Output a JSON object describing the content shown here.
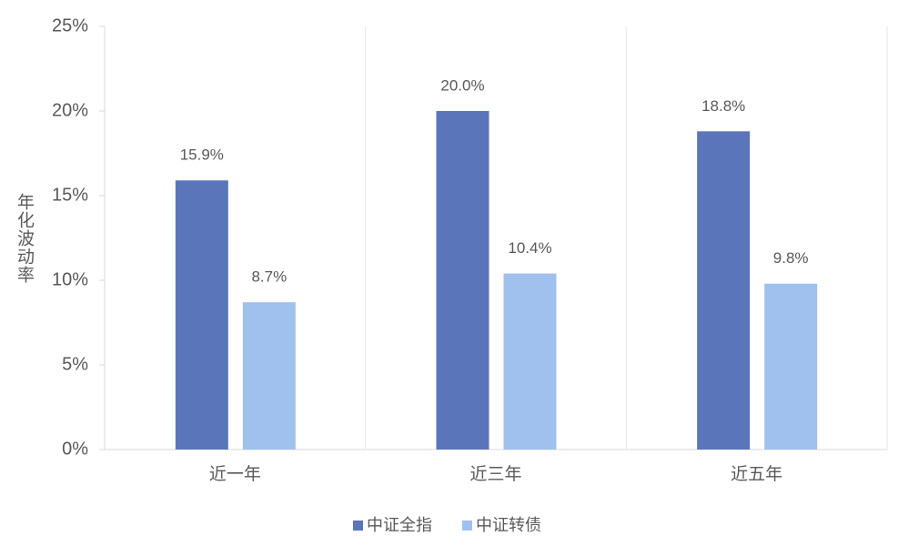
{
  "chart_data": {
    "type": "bar",
    "categories": [
      "近一年",
      "近三年",
      "近五年"
    ],
    "series": [
      {
        "name": "中证全指",
        "color": "#5b75bb",
        "values": [
          15.9,
          20.0,
          18.8
        ],
        "value_labels": [
          "15.9%",
          "20.0%",
          "18.8%"
        ]
      },
      {
        "name": "中证转债",
        "color": "#a0c0ee",
        "values": [
          8.7,
          10.4,
          9.8
        ],
        "value_labels": [
          "8.7%",
          "10.4%",
          "9.8%"
        ]
      }
    ],
    "y_label": "年化波动率",
    "ylim": [
      0,
      25
    ],
    "yticks": [
      {
        "value": 0,
        "label": "0%"
      },
      {
        "value": 5,
        "label": "5%"
      },
      {
        "value": 10,
        "label": "10%"
      },
      {
        "value": 15,
        "label": "15%"
      },
      {
        "value": 20,
        "label": "20%"
      },
      {
        "value": 25,
        "label": "25%"
      }
    ],
    "legend": "bottom"
  }
}
